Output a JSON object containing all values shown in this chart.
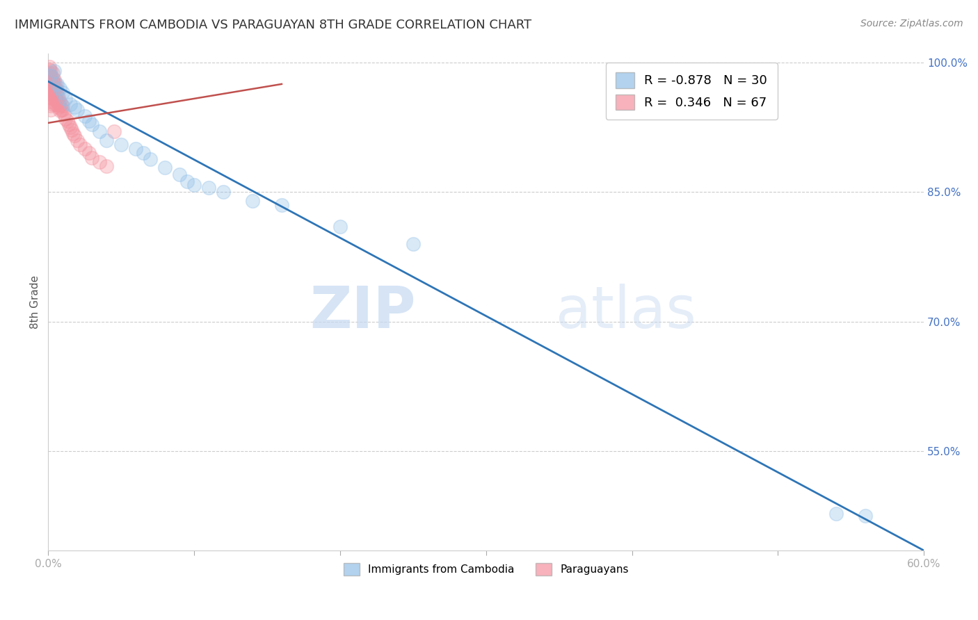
{
  "title": "IMMIGRANTS FROM CAMBODIA VS PARAGUAYAN 8TH GRADE CORRELATION CHART",
  "source": "Source: ZipAtlas.com",
  "ylabel": "8th Grade",
  "xlim": [
    0.0,
    0.6
  ],
  "ylim": [
    0.435,
    1.01
  ],
  "xtick_vals": [
    0.0,
    0.1,
    0.2,
    0.3,
    0.4,
    0.5,
    0.6
  ],
  "xtick_labels_show": [
    "0.0%",
    "",
    "",
    "",
    "",
    "",
    "60.0%"
  ],
  "ytick_right_labels": [
    "100.0%",
    "85.0%",
    "70.0%",
    "55.0%"
  ],
  "ytick_right_vals": [
    1.0,
    0.85,
    0.7,
    0.55
  ],
  "grid_color": "#cccccc",
  "background_color": "#ffffff",
  "blue_color": "#92C0E8",
  "pink_color": "#F4929F",
  "blue_line_color": "#2E75B6",
  "pink_line_color": "#C0504D",
  "legend_blue_R": "-0.878",
  "legend_blue_N": "30",
  "legend_pink_R": "0.346",
  "legend_pink_N": "67",
  "watermark": "ZIPatlas",
  "watermark_color": "#C5D9F1",
  "blue_scatter_x": [
    0.002,
    0.004,
    0.006,
    0.008,
    0.01,
    0.012,
    0.015,
    0.018,
    0.02,
    0.025,
    0.028,
    0.03,
    0.035,
    0.04,
    0.05,
    0.06,
    0.065,
    0.07,
    0.08,
    0.09,
    0.095,
    0.1,
    0.11,
    0.12,
    0.14,
    0.16,
    0.2,
    0.25,
    0.54,
    0.56
  ],
  "blue_scatter_y": [
    0.985,
    0.99,
    0.975,
    0.97,
    0.965,
    0.958,
    0.952,
    0.948,
    0.945,
    0.938,
    0.932,
    0.928,
    0.92,
    0.91,
    0.905,
    0.9,
    0.895,
    0.888,
    0.878,
    0.87,
    0.862,
    0.858,
    0.855,
    0.85,
    0.84,
    0.835,
    0.81,
    0.79,
    0.478,
    0.475
  ],
  "pink_scatter_x": [
    0.001,
    0.001,
    0.001,
    0.001,
    0.001,
    0.001,
    0.001,
    0.001,
    0.001,
    0.001,
    0.002,
    0.002,
    0.002,
    0.002,
    0.002,
    0.002,
    0.002,
    0.002,
    0.002,
    0.002,
    0.003,
    0.003,
    0.003,
    0.003,
    0.003,
    0.003,
    0.003,
    0.003,
    0.004,
    0.004,
    0.004,
    0.004,
    0.004,
    0.005,
    0.005,
    0.005,
    0.005,
    0.005,
    0.006,
    0.006,
    0.006,
    0.007,
    0.007,
    0.007,
    0.008,
    0.008,
    0.008,
    0.009,
    0.009,
    0.01,
    0.01,
    0.011,
    0.012,
    0.013,
    0.014,
    0.015,
    0.016,
    0.017,
    0.018,
    0.02,
    0.022,
    0.025,
    0.028,
    0.03,
    0.035,
    0.04,
    0.045
  ],
  "pink_scatter_y": [
    0.995,
    0.992,
    0.988,
    0.985,
    0.982,
    0.978,
    0.975,
    0.972,
    0.968,
    0.965,
    0.99,
    0.985,
    0.98,
    0.975,
    0.97,
    0.965,
    0.96,
    0.955,
    0.95,
    0.945,
    0.988,
    0.982,
    0.978,
    0.972,
    0.968,
    0.962,
    0.958,
    0.952,
    0.98,
    0.975,
    0.97,
    0.965,
    0.96,
    0.975,
    0.97,
    0.965,
    0.958,
    0.952,
    0.968,
    0.962,
    0.955,
    0.96,
    0.955,
    0.948,
    0.955,
    0.95,
    0.944,
    0.952,
    0.945,
    0.95,
    0.945,
    0.94,
    0.935,
    0.932,
    0.928,
    0.925,
    0.922,
    0.918,
    0.915,
    0.91,
    0.905,
    0.9,
    0.895,
    0.89,
    0.885,
    0.88,
    0.92
  ],
  "blue_trendline_x": [
    0.0,
    0.6
  ],
  "blue_trendline_y": [
    0.978,
    0.435
  ],
  "pink_trendline_x": [
    0.0,
    0.16
  ],
  "pink_trendline_y": [
    0.93,
    0.975
  ],
  "title_fontsize": 13,
  "source_fontsize": 10,
  "axis_label_fontsize": 11,
  "tick_fontsize": 11,
  "legend_fontsize": 13,
  "scatter_size": 200,
  "scatter_alpha": 0.35,
  "scatter_linewidth": 1.2
}
